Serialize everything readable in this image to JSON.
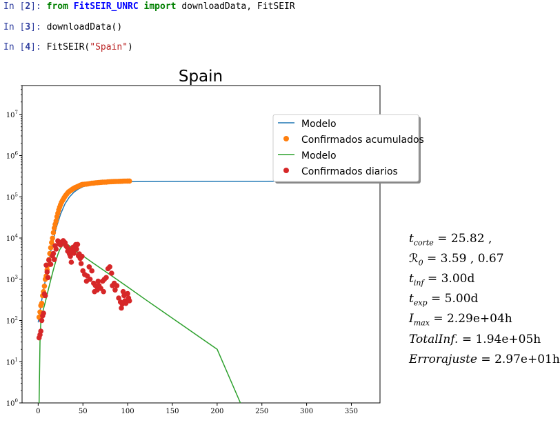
{
  "cells": [
    {
      "prompt_in": "In [",
      "num": "2",
      "prompt_end": "]:",
      "kw1": "from",
      "module": "FitSEIR_UNRC",
      "kw2": "import",
      "rest": "downloadData, FitSEIR"
    },
    {
      "prompt_in": "In [",
      "num": "3",
      "prompt_end": "]:",
      "code": "downloadData()"
    },
    {
      "prompt_in": "In [",
      "num": "4",
      "prompt_end": "]:",
      "fn": "FitSEIR(",
      "arg": "\"Spain\"",
      "close": ")"
    }
  ],
  "colors": {
    "modelo_acum": "#1f77b4",
    "confirmados_acum": "#ff7f0e",
    "modelo_diario": "#2ca02c",
    "confirmados_diarios": "#d62728"
  },
  "chart_data": {
    "type": "line",
    "title": "Spain",
    "yscale": "log",
    "xlim": [
      -18,
      382
    ],
    "ylim": [
      1,
      50000000
    ],
    "xticks": [
      0,
      50,
      100,
      150,
      200,
      250,
      300,
      350
    ],
    "xtick_labels": [
      "0",
      "50",
      "100",
      "150",
      "200",
      "250",
      "300",
      "350"
    ],
    "yticks": [
      1,
      10,
      100,
      1000,
      10000,
      100000,
      1000000,
      10000000
    ],
    "ytick_base": "10",
    "ytick_exps": [
      "0",
      "1",
      "2",
      "3",
      "4",
      "5",
      "6",
      "7"
    ],
    "legend_position": "upper-right",
    "legend": [
      "Modelo",
      "Confirmados acumulados",
      "Modelo",
      "Confirmados diarios"
    ],
    "series": [
      {
        "name": "Modelo",
        "kind": "line",
        "color": "#1f77b4",
        "x": [
          0,
          5,
          10,
          15,
          20,
          25,
          30,
          35,
          40,
          45,
          50,
          60,
          70,
          80,
          90,
          100,
          120,
          150,
          200,
          250,
          300,
          335
        ],
        "y": [
          90,
          420,
          1600,
          6000,
          17000,
          38000,
          68000,
          100000,
          130000,
          155000,
          175000,
          200000,
          215000,
          224000,
          229000,
          232000,
          235000,
          237000,
          238000,
          239000,
          239500,
          240000
        ]
      },
      {
        "name": "Confirmados acumulados",
        "kind": "scatter",
        "color": "#ff7f0e",
        "x": [
          1,
          2,
          3,
          4,
          5,
          6,
          7,
          8,
          9,
          10,
          11,
          12,
          13,
          14,
          15,
          16,
          17,
          18,
          19,
          20,
          21,
          22,
          23,
          24,
          25,
          26,
          27,
          28,
          29,
          30,
          31,
          32,
          33,
          34,
          35,
          36,
          37,
          38,
          39,
          40,
          41,
          42,
          43,
          44,
          45,
          46,
          47,
          48,
          49,
          50,
          52,
          54,
          56,
          58,
          60,
          62,
          64,
          66,
          68,
          70,
          72,
          74,
          76,
          78,
          80,
          82,
          84,
          86,
          88,
          90,
          92,
          94,
          96,
          98,
          100,
          102
        ],
        "y": [
          120,
          160,
          230,
          260,
          400,
          500,
          680,
          1000,
          1200,
          1700,
          2200,
          3000,
          4200,
          5800,
          7800,
          9900,
          13500,
          17500,
          21500,
          26000,
          33000,
          40000,
          48000,
          56000,
          64000,
          73000,
          80000,
          87000,
          95000,
          103000,
          110000,
          117000,
          125000,
          132000,
          136000,
          141000,
          146000,
          152000,
          157000,
          161000,
          166000,
          169000,
          173000,
          177000,
          181000,
          185000,
          190000,
          194000,
          198000,
          200000,
          202000,
          204000,
          207000,
          210000,
          213000,
          215000,
          218000,
          220000,
          222000,
          224000,
          226000,
          227000,
          228000,
          230000,
          232000,
          233000,
          234000,
          235000,
          236000,
          237000,
          238000,
          239000,
          240000,
          240500,
          241000,
          241500
        ]
      },
      {
        "name": "Modelo",
        "kind": "line",
        "color": "#2ca02c",
        "x": [
          1,
          2,
          3,
          5,
          8,
          11,
          14,
          17,
          20,
          22,
          24,
          27,
          30,
          33,
          36,
          40,
          50,
          60,
          80,
          100,
          120,
          140,
          160,
          180,
          200,
          226
        ],
        "y": [
          1,
          30,
          90,
          160,
          280,
          520,
          950,
          1700,
          2900,
          4000,
          5200,
          6500,
          7200,
          7000,
          6200,
          5200,
          3700,
          2600,
          1300,
          650,
          320,
          160,
          80,
          40,
          20,
          1
        ]
      },
      {
        "name": "Confirmados diarios",
        "kind": "scatter",
        "color": "#d62728",
        "x": [
          1,
          2,
          3,
          4,
          5,
          6,
          7,
          8,
          9,
          10,
          11,
          12,
          14,
          16,
          17,
          18,
          19,
          20,
          22,
          23,
          24,
          25,
          26,
          27,
          28,
          29,
          30,
          31,
          32,
          33,
          34,
          35,
          36,
          37,
          38,
          39,
          40,
          41,
          42,
          43,
          44,
          45,
          46,
          47,
          48,
          49,
          50,
          52,
          54,
          55,
          57,
          58,
          60,
          62,
          63,
          64,
          66,
          67,
          68,
          70,
          72,
          73,
          74,
          76,
          78,
          80,
          82,
          83,
          85,
          86,
          88,
          90,
          92,
          93,
          94,
          95,
          96,
          97,
          98,
          100,
          101,
          102
        ],
        "y": [
          38,
          45,
          55,
          100,
          130,
          150,
          440,
          400,
          2200,
          1500,
          1100,
          2900,
          2300,
          3700,
          4200,
          3000,
          6500,
          5400,
          8500,
          8000,
          7100,
          6800,
          7700,
          8200,
          8600,
          8000,
          7700,
          6500,
          6100,
          4800,
          5400,
          4100,
          3600,
          2600,
          5000,
          6000,
          4300,
          5700,
          6900,
          5400,
          7000,
          3700,
          4100,
          3200,
          2400,
          3600,
          1600,
          1300,
          900,
          1200,
          2000,
          1000,
          1600,
          800,
          500,
          700,
          550,
          900,
          700,
          600,
          900,
          500,
          1000,
          1100,
          1800,
          2000,
          1400,
          700,
          800,
          550,
          700,
          350,
          280,
          200,
          250,
          500,
          400,
          300,
          260,
          450,
          350,
          300
        ]
      }
    ]
  },
  "stats": {
    "t_corte": {
      "sym": "t",
      "sub": "corte",
      "value": "25.82 ,"
    },
    "R0": {
      "sym": "ℛ",
      "sub": "0",
      "value": "3.59 , 0.67"
    },
    "t_inf": {
      "sym": "t",
      "sub": "inf",
      "value": "3.00d"
    },
    "t_exp": {
      "sym": "t",
      "sub": "exp",
      "value": "5.00d"
    },
    "I_max": {
      "sym": "I",
      "sub": "max",
      "value": "2.29e+04h"
    },
    "total_inf": {
      "sym": "TotalInf.",
      "value": "1.94e+05h"
    },
    "error_ajuste": {
      "sym": "Errorajuste",
      "value": "2.97e+01h"
    }
  }
}
